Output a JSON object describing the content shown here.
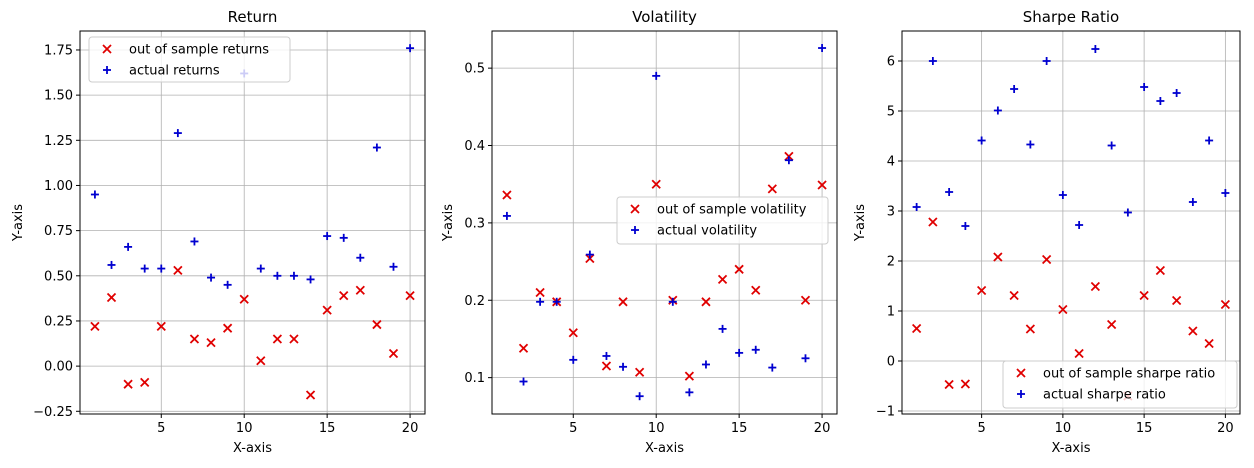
{
  "colors": {
    "series_a": "#e00000",
    "series_b": "#0000d0",
    "grid": "#b0b0b0"
  },
  "chart_data": [
    {
      "type": "scatter",
      "title": "Return",
      "xlabel": "X-axis",
      "ylabel": "Y-axis",
      "xlim": [
        0.1,
        20.9
      ],
      "ylim": [
        -0.265,
        1.855
      ],
      "xticks": [
        5,
        10,
        15,
        20
      ],
      "yticks": [
        -0.25,
        0.0,
        0.25,
        0.5,
        0.75,
        1.0,
        1.25,
        1.5,
        1.75
      ],
      "ytick_labels": [
        "−0.25",
        "0.00",
        "0.25",
        "0.50",
        "0.75",
        "1.00",
        "1.25",
        "1.50",
        "1.75"
      ],
      "grid": true,
      "legend_position": "upper-left",
      "x": [
        1,
        2,
        3,
        4,
        5,
        6,
        7,
        8,
        9,
        10,
        11,
        12,
        13,
        14,
        15,
        16,
        17,
        18,
        19,
        20
      ],
      "series": [
        {
          "name": "out of sample returns",
          "marker": "x",
          "color": "#e00000",
          "values": [
            0.22,
            0.38,
            -0.1,
            -0.09,
            0.22,
            0.53,
            0.15,
            0.13,
            0.21,
            0.37,
            0.03,
            0.15,
            0.15,
            -0.16,
            0.31,
            0.39,
            0.42,
            0.23,
            0.07,
            0.39
          ]
        },
        {
          "name": "actual returns",
          "marker": "+",
          "color": "#0000d0",
          "values": [
            0.95,
            0.56,
            0.66,
            0.54,
            0.54,
            1.29,
            0.69,
            0.49,
            0.45,
            1.62,
            0.54,
            0.5,
            0.5,
            0.48,
            0.72,
            0.71,
            0.6,
            1.21,
            0.55,
            1.76
          ]
        }
      ]
    },
    {
      "type": "scatter",
      "title": "Volatility",
      "xlabel": "X-axis",
      "ylabel": "Y-axis",
      "xlim": [
        0.1,
        20.9
      ],
      "ylim": [
        0.053,
        0.548
      ],
      "xticks": [
        5,
        10,
        15,
        20
      ],
      "yticks": [
        0.1,
        0.2,
        0.3,
        0.4,
        0.5
      ],
      "ytick_labels": [
        "0.1",
        "0.2",
        "0.3",
        "0.4",
        "0.5"
      ],
      "grid": true,
      "legend_position": "center-right",
      "x": [
        1,
        2,
        3,
        4,
        5,
        6,
        7,
        8,
        9,
        10,
        11,
        12,
        13,
        14,
        15,
        16,
        17,
        18,
        19,
        20
      ],
      "series": [
        {
          "name": "out of sample volatility",
          "marker": "x",
          "color": "#e00000",
          "values": [
            0.336,
            0.138,
            0.21,
            0.198,
            0.158,
            0.254,
            0.115,
            0.198,
            0.107,
            0.35,
            0.2,
            0.102,
            0.198,
            0.227,
            0.24,
            0.213,
            0.344,
            0.386,
            0.2,
            0.349
          ]
        },
        {
          "name": "actual volatility",
          "marker": "+",
          "color": "#0000d0",
          "values": [
            0.309,
            0.095,
            0.198,
            0.198,
            0.123,
            0.259,
            0.128,
            0.114,
            0.076,
            0.49,
            0.198,
            0.081,
            0.117,
            0.163,
            0.132,
            0.136,
            0.113,
            0.381,
            0.125,
            0.526
          ]
        }
      ]
    },
    {
      "type": "scatter",
      "title": "Sharpe Ratio",
      "xlabel": "X-axis",
      "ylabel": "Y-axis",
      "xlim": [
        0.1,
        20.9
      ],
      "ylim": [
        -1.06,
        6.6
      ],
      "xticks": [
        5,
        10,
        15,
        20
      ],
      "yticks": [
        -1,
        0,
        1,
        2,
        3,
        4,
        5,
        6
      ],
      "ytick_labels": [
        "−1",
        "0",
        "1",
        "2",
        "3",
        "4",
        "5",
        "6"
      ],
      "grid": true,
      "legend_position": "lower-right",
      "x": [
        1,
        2,
        3,
        4,
        5,
        6,
        7,
        8,
        9,
        10,
        11,
        12,
        13,
        14,
        15,
        16,
        17,
        18,
        19,
        20
      ],
      "series": [
        {
          "name": "out of sample sharpe ratio",
          "marker": "x",
          "color": "#e00000",
          "values": [
            0.65,
            2.78,
            -0.47,
            -0.46,
            1.41,
            2.08,
            1.31,
            0.64,
            2.03,
            1.03,
            0.15,
            1.49,
            0.73,
            -0.7,
            1.31,
            1.81,
            1.21,
            0.6,
            0.35,
            1.13
          ]
        },
        {
          "name": "actual sharpe ratio",
          "marker": "+",
          "color": "#0000d0",
          "values": [
            3.08,
            6.0,
            3.38,
            2.7,
            4.41,
            5.01,
            5.44,
            4.33,
            6.0,
            3.32,
            2.72,
            6.24,
            4.31,
            2.97,
            5.48,
            5.2,
            5.36,
            3.18,
            4.41,
            3.36
          ]
        }
      ]
    }
  ]
}
